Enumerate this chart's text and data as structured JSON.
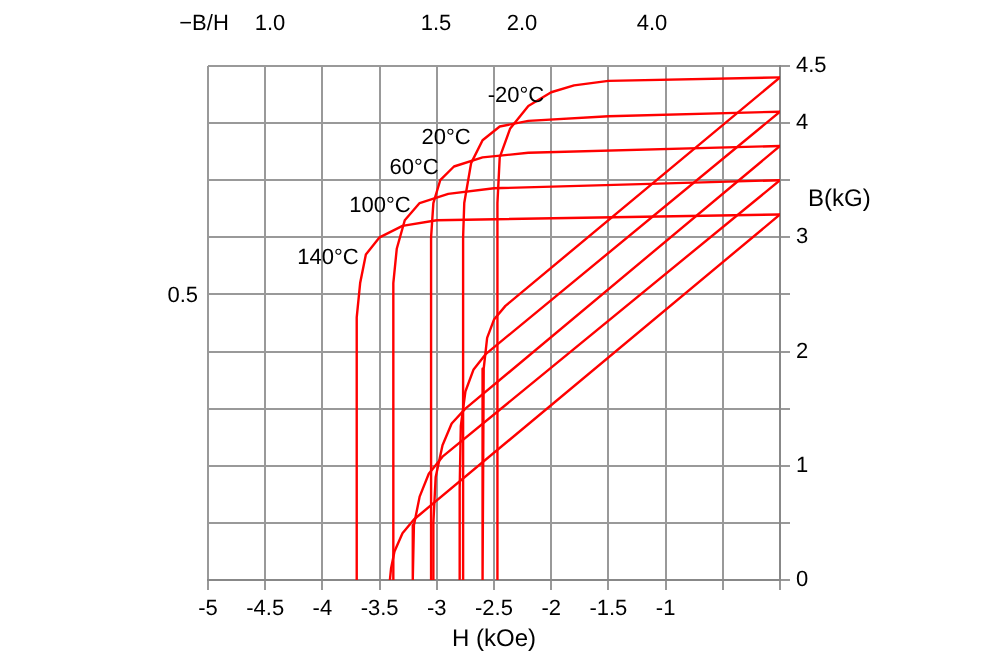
{
  "chart_data": {
    "type": "line",
    "xlabel": "H (kOe)",
    "ylabel": "B(kG)",
    "xlim": [
      -5,
      0
    ],
    "xticks": [
      -5,
      -4.5,
      -4,
      -3.5,
      -3,
      -2.5,
      -2,
      -1.5,
      -1,
      {
        "value": -0.5,
        "label": null
      },
      {
        "value": 0,
        "label": null
      }
    ],
    "ylim": [
      0,
      4.5
    ],
    "yticks": [
      0,
      {
        "value": 0.5,
        "label": null
      },
      1,
      {
        "value": 1.5,
        "label": null
      },
      2,
      {
        "value": 2.5,
        "label": null
      },
      3,
      {
        "value": 3.5,
        "label": null
      },
      4,
      4.5
    ],
    "grid": true,
    "legend": false,
    "marker": "none",
    "line_style": "solid",
    "series": [
      {
        "name": "-20°C",
        "color": "#ff0000",
        "x": [
          0,
          -1.5,
          -1.8,
          -2.0,
          -2.2,
          -2.36,
          -2.45,
          -2.47,
          -2.47
        ],
        "values": [
          4.4,
          4.37,
          4.33,
          4.27,
          4.15,
          3.95,
          3.7,
          3.3,
          0
        ]
      },
      {
        "name": "20°C",
        "color": "#ff0000",
        "x": [
          0,
          -1.5,
          -2.2,
          -2.45,
          -2.6,
          -2.7,
          -2.76,
          -2.77,
          -2.77
        ],
        "values": [
          4.1,
          4.06,
          4.02,
          3.97,
          3.85,
          3.65,
          3.3,
          3.0,
          0
        ]
      },
      {
        "name": "60°C",
        "color": "#ff0000",
        "x": [
          0,
          -2.2,
          -2.6,
          -2.85,
          -2.97,
          -3.03,
          -3.05,
          -3.05
        ],
        "values": [
          3.8,
          3.74,
          3.7,
          3.62,
          3.5,
          3.3,
          3.0,
          0
        ]
      },
      {
        "name": "100°C",
        "color": "#ff0000",
        "x": [
          0,
          -2.5,
          -2.9,
          -3.15,
          -3.28,
          -3.35,
          -3.38,
          -3.38
        ],
        "values": [
          3.5,
          3.43,
          3.38,
          3.3,
          3.15,
          2.9,
          2.6,
          0
        ]
      },
      {
        "name": "140°C",
        "color": "#ff0000",
        "x": [
          0,
          -3.0,
          -3.3,
          -3.5,
          -3.62,
          -3.67,
          -3.7,
          -3.7
        ],
        "values": [
          3.2,
          3.15,
          3.1,
          3.0,
          2.85,
          2.6,
          2.3,
          0
        ]
      },
      {
        "color": "#ff0000",
        "x": [
          0,
          -2.4,
          -2.5,
          -2.56,
          -2.59,
          -2.6
        ],
        "values": [
          4.4,
          2.4,
          2.28,
          2.12,
          1.85,
          0
        ]
      },
      {
        "color": "#ff0000",
        "x": [
          0,
          -2.57,
          -2.68,
          -2.75,
          -2.79,
          -2.8,
          -2.8
        ],
        "values": [
          4.1,
          1.98,
          1.84,
          1.65,
          1.35,
          0.8,
          0
        ]
      },
      {
        "color": "#ff0000",
        "x": [
          0,
          -2.75,
          -2.87,
          -2.95,
          -3.01,
          -3.03,
          -3.03
        ],
        "values": [
          3.8,
          1.5,
          1.37,
          1.18,
          0.9,
          0.5,
          0
        ]
      },
      {
        "color": "#ff0000",
        "x": [
          0,
          -2.95,
          -3.07,
          -3.15,
          -3.2,
          -3.21
        ],
        "values": [
          3.5,
          1.08,
          0.93,
          0.73,
          0.48,
          0
        ]
      },
      {
        "color": "#ff0000",
        "x": [
          0,
          -3.2,
          -3.3,
          -3.37,
          -3.4,
          -3.41
        ],
        "values": [
          3.2,
          0.53,
          0.41,
          0.25,
          0.1,
          0
        ]
      }
    ],
    "annotations": [
      "−B/H",
      "1.0",
      "1.5",
      "2.0",
      "4.0",
      "0.5"
    ]
  }
}
